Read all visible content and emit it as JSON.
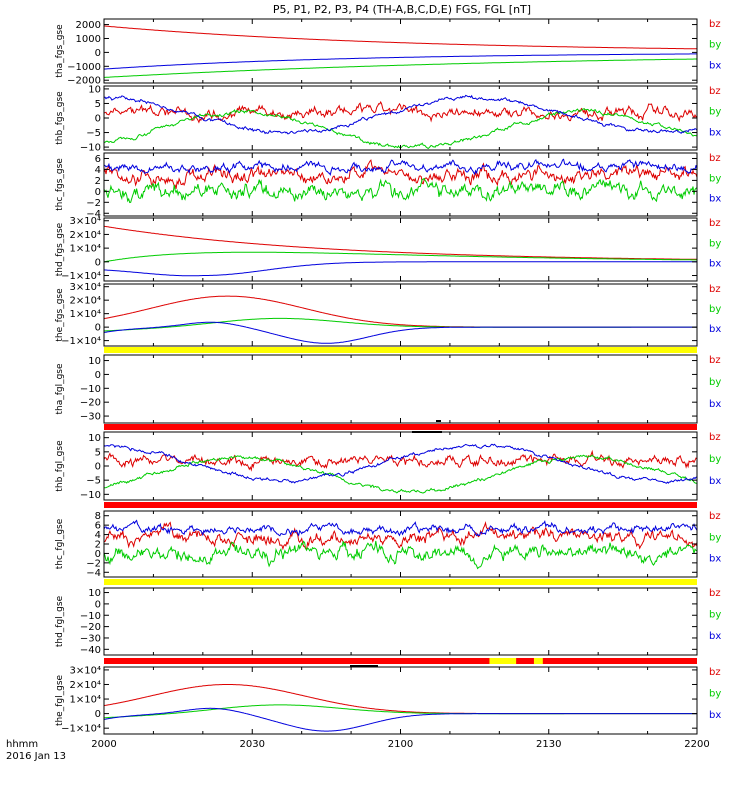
{
  "figure": {
    "title": "P5, P1, P2, P3, P4 (TH-A,B,C,D,E) FGS, FGL [nT]",
    "footer_line1": "hhmm",
    "footer_line2": "2016 Jan 13"
  },
  "colors": {
    "bz": "#dd0000",
    "by": "#00cc00",
    "bx": "#0000dd",
    "flag_red": "#ff0000",
    "flag_yellow": "#ffff00"
  },
  "chart_data": [
    {
      "type": "line",
      "ylabel": "tha_fgs_gse",
      "ylim": [
        -2200,
        2400
      ],
      "yticks": [
        2000,
        1000,
        0,
        -1000,
        -2000
      ],
      "ytick_labels": [
        "2000",
        "1000",
        "0",
        "−1000",
        "−2000"
      ],
      "x": [
        "2000",
        "2030",
        "2100",
        "2130",
        "2200"
      ],
      "legend": [
        "bz",
        "by",
        "bx"
      ],
      "series": [
        {
          "name": "bz",
          "shape": "decay",
          "params": [
            1900,
            60
          ],
          "noise": 0
        },
        {
          "name": "by",
          "shape": "recover",
          "params": [
            -1800,
            90
          ],
          "noise": 0
        },
        {
          "name": "bx",
          "shape": "recover",
          "params": [
            -1200,
            50
          ],
          "noise": 0
        }
      ]
    },
    {
      "type": "line",
      "ylabel": "thb_fgs_gse",
      "ylim": [
        -11,
        11
      ],
      "yticks": [
        10,
        5,
        0,
        -5,
        -10
      ],
      "ytick_labels": [
        "10",
        "5",
        "0",
        "−5",
        "−10"
      ],
      "x": [
        "2000",
        "2030",
        "2100",
        "2130",
        "2200"
      ],
      "legend": [
        "bz",
        "by",
        "bx"
      ],
      "series": [
        {
          "name": "bz",
          "shape": "flat",
          "params": [
            2
          ],
          "noise": 1.6
        },
        {
          "name": "by",
          "shape": "wave",
          "params": [
            -4,
            6,
            35,
            60
          ],
          "noise": 0.6
        },
        {
          "name": "bx",
          "shape": "wave",
          "params": [
            1,
            6,
            38,
            20
          ],
          "noise": 0.6
        }
      ]
    },
    {
      "type": "line",
      "ylabel": "thc_fgs_gse",
      "ylim": [
        -4.5,
        7
      ],
      "yticks": [
        6,
        4,
        2,
        0,
        -2,
        -4
      ],
      "ytick_labels": [
        "6",
        "4",
        "2",
        "0",
        "−2",
        "−4"
      ],
      "x": [
        "2000",
        "2030",
        "2100",
        "2130",
        "2200"
      ],
      "legend": [
        "bz",
        "by",
        "bx"
      ],
      "series": [
        {
          "name": "bz",
          "shape": "flat",
          "params": [
            3
          ],
          "noise": 1.2
        },
        {
          "name": "by",
          "shape": "flat",
          "params": [
            0
          ],
          "noise": 1.3
        },
        {
          "name": "bx",
          "shape": "flat",
          "params": [
            4.5
          ],
          "noise": 0.7
        }
      ]
    },
    {
      "type": "line",
      "ylabel": "thd_fgs_gse",
      "ylim": [
        -14000,
        32000
      ],
      "yticks": [
        30000,
        20000,
        10000,
        0,
        -10000
      ],
      "ytick_labels": [
        "3×10⁴",
        "2×10⁴",
        "1×10⁴",
        "0",
        "−1×10⁴"
      ],
      "x": [
        "2000",
        "2030",
        "2100",
        "2130",
        "2200"
      ],
      "legend": [
        "bz",
        "by",
        "bx"
      ],
      "series": [
        {
          "name": "bz",
          "shape": "decay",
          "params": [
            26000,
            45
          ],
          "noise": 0
        },
        {
          "name": "by",
          "shape": "bumpdecay",
          "params": [
            7000,
            30
          ],
          "noise": 0
        },
        {
          "name": "bx",
          "shape": "dip",
          "params": [
            -10000,
            20,
            55
          ],
          "noise": 0
        }
      ]
    },
    {
      "type": "line",
      "ylabel": "the_fgs_gse",
      "ylim": [
        -14000,
        32000
      ],
      "yticks": [
        30000,
        20000,
        10000,
        0,
        -10000
      ],
      "ytick_labels": [
        "3×10⁴",
        "2×10⁴",
        "1×10⁴",
        "0",
        "−1×10⁴"
      ],
      "x": [
        "2000",
        "2030",
        "2100",
        "2130",
        "2200"
      ],
      "legend": [
        "bz",
        "by",
        "bx"
      ],
      "series": [
        {
          "name": "bz",
          "shape": "gauss",
          "params": [
            23000,
            25,
            22,
            0
          ],
          "noise": 0
        },
        {
          "name": "by",
          "shape": "gauss",
          "params": [
            7000,
            35,
            18,
            -3000
          ],
          "noise": 0
        },
        {
          "name": "bx",
          "shape": "wave2",
          "params": [
            -8000,
            0
          ],
          "noise": 0
        }
      ]
    },
    {
      "type": "line",
      "ylabel": "tha_fgl_gse",
      "ylim": [
        -35,
        14
      ],
      "yticks": [
        10,
        0,
        -10,
        -20,
        -30
      ],
      "ytick_labels": [
        "10",
        "0",
        "−10",
        "−20",
        "−30"
      ],
      "x": [
        "2000",
        "2030",
        "2100",
        "2130",
        "2200"
      ],
      "legend": [
        "bz",
        "by",
        "bx"
      ],
      "series": []
    },
    {
      "type": "line",
      "ylabel": "thb_fgl_gse",
      "ylim": [
        -12,
        12
      ],
      "yticks": [
        10,
        5,
        0,
        -5,
        -10
      ],
      "ytick_labels": [
        "10",
        "5",
        "0",
        "−5",
        "−10"
      ],
      "x": [
        "2000",
        "2030",
        "2100",
        "2130",
        "2200"
      ],
      "legend": [
        "bz",
        "by",
        "bx"
      ],
      "series": [
        {
          "name": "bz",
          "shape": "flat",
          "params": [
            2
          ],
          "noise": 1.6
        },
        {
          "name": "by",
          "shape": "wave",
          "params": [
            -3,
            6,
            35,
            60
          ],
          "noise": 0.6
        },
        {
          "name": "bx",
          "shape": "wave",
          "params": [
            1,
            6,
            38,
            20
          ],
          "noise": 0.6
        }
      ]
    },
    {
      "type": "line",
      "ylabel": "thc_fgl_gse",
      "ylim": [
        -5,
        9
      ],
      "yticks": [
        8,
        6,
        4,
        2,
        0,
        -2,
        -4
      ],
      "ytick_labels": [
        "8",
        "6",
        "4",
        "2",
        "0",
        "−2",
        "−4"
      ],
      "x": [
        "2000",
        "2030",
        "2100",
        "2130",
        "2200"
      ],
      "legend": [
        "bz",
        "by",
        "bx"
      ],
      "series": [
        {
          "name": "bz",
          "shape": "flat",
          "params": [
            3.5
          ],
          "noise": 1.3
        },
        {
          "name": "by",
          "shape": "flat",
          "params": [
            0
          ],
          "noise": 1.4
        },
        {
          "name": "bx",
          "shape": "flat",
          "params": [
            5
          ],
          "noise": 0.8
        }
      ]
    },
    {
      "type": "line",
      "ylabel": "thd_fgl_gse",
      "ylim": [
        -45,
        14
      ],
      "yticks": [
        10,
        0,
        -10,
        -20,
        -30,
        -40
      ],
      "ytick_labels": [
        "10",
        "0",
        "−10",
        "−20",
        "−30",
        "−40"
      ],
      "x": [
        "2000",
        "2030",
        "2100",
        "2130",
        "2200"
      ],
      "legend": [
        "bz",
        "by",
        "bx"
      ],
      "series": []
    },
    {
      "type": "line",
      "ylabel": "the_fgl_gse",
      "ylim": [
        -14000,
        32000
      ],
      "yticks": [
        30000,
        20000,
        10000,
        0,
        -10000
      ],
      "ytick_labels": [
        "3×10⁴",
        "2×10⁴",
        "1×10⁴",
        "0",
        "−1×10⁴"
      ],
      "x": [
        "2000",
        "2030",
        "2100",
        "2130",
        "2200"
      ],
      "legend": [
        "bz",
        "by",
        "bx"
      ],
      "series": [
        {
          "name": "bz",
          "shape": "gauss",
          "params": [
            20000,
            25,
            22,
            0
          ],
          "noise": 0
        },
        {
          "name": "by",
          "shape": "gauss",
          "params": [
            6500,
            35,
            18,
            -3000
          ],
          "noise": 0
        },
        {
          "name": "bx",
          "shape": "wave2",
          "params": [
            -8000,
            0
          ],
          "noise": 0
        }
      ]
    }
  ]
}
